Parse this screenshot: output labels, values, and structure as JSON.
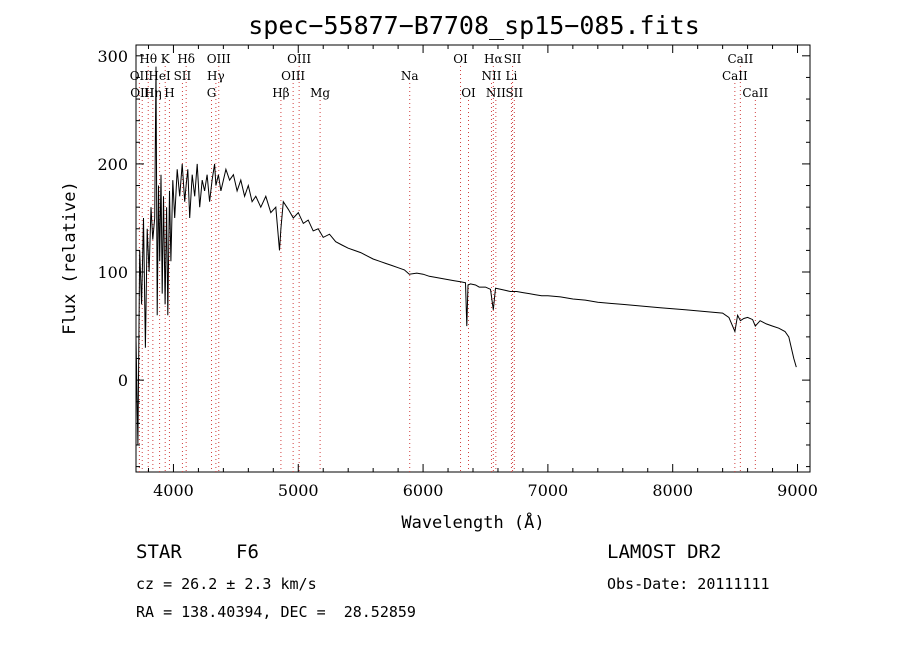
{
  "chart_data": {
    "type": "line",
    "title": "spec−55877−B7708_sp15−085.fits",
    "xlabel": "Wavelength (Å)",
    "ylabel": "Flux (relative)",
    "xlim": [
      3700,
      9100
    ],
    "ylim": [
      -85,
      310
    ],
    "x_ticks": [
      4000,
      5000,
      6000,
      7000,
      8000,
      9000
    ],
    "y_ticks": [
      0,
      100,
      200,
      300
    ],
    "grid": false,
    "series": [
      {
        "color": "#000000",
        "x": [
          3700,
          3715,
          3730,
          3745,
          3760,
          3775,
          3790,
          3805,
          3820,
          3835,
          3850,
          3860,
          3870,
          3880,
          3890,
          3900,
          3910,
          3920,
          3933,
          3945,
          3955,
          3968,
          3980,
          3995,
          4010,
          4030,
          4050,
          4070,
          4090,
          4101,
          4115,
          4130,
          4150,
          4170,
          4190,
          4210,
          4230,
          4250,
          4270,
          4290,
          4310,
          4330,
          4340,
          4360,
          4380,
          4400,
          4420,
          4450,
          4480,
          4510,
          4540,
          4570,
          4600,
          4630,
          4660,
          4700,
          4740,
          4780,
          4820,
          4850,
          4861,
          4880,
          4920,
          4960,
          5000,
          5040,
          5080,
          5120,
          5160,
          5200,
          5250,
          5300,
          5350,
          5400,
          5450,
          5500,
          5550,
          5600,
          5650,
          5700,
          5750,
          5800,
          5850,
          5890,
          5950,
          6000,
          6050,
          6100,
          6150,
          6200,
          6250,
          6300,
          6340,
          6350,
          6360,
          6380,
          6420,
          6450,
          6500,
          6540,
          6563,
          6580,
          6620,
          6660,
          6700,
          6750,
          6800,
          6850,
          6900,
          6950,
          7000,
          7100,
          7200,
          7300,
          7400,
          7500,
          7600,
          7700,
          7800,
          7900,
          8000,
          8100,
          8200,
          8300,
          8400,
          8450,
          8498,
          8520,
          8542,
          8570,
          8600,
          8640,
          8662,
          8700,
          8750,
          8800,
          8850,
          8900,
          8930,
          8950,
          8970,
          8990
        ],
        "y": [
          40,
          -60,
          120,
          70,
          150,
          30,
          140,
          100,
          160,
          130,
          150,
          290,
          60,
          180,
          110,
          190,
          80,
          170,
          70,
          160,
          60,
          175,
          110,
          185,
          150,
          195,
          170,
          200,
          165,
          180,
          195,
          150,
          190,
          170,
          200,
          160,
          185,
          175,
          190,
          165,
          185,
          200,
          180,
          190,
          175,
          185,
          195,
          185,
          190,
          175,
          185,
          170,
          180,
          165,
          170,
          160,
          170,
          155,
          160,
          120,
          140,
          165,
          158,
          150,
          155,
          145,
          148,
          138,
          140,
          132,
          135,
          128,
          125,
          122,
          120,
          118,
          115,
          112,
          110,
          108,
          106,
          104,
          102,
          98,
          99,
          98,
          96,
          95,
          94,
          93,
          92,
          91,
          90,
          50,
          88,
          89,
          88,
          86,
          86,
          84,
          65,
          85,
          84,
          83,
          82,
          82,
          81,
          80,
          79,
          78,
          78,
          77,
          75,
          74,
          72,
          71,
          70,
          69,
          68,
          67,
          66,
          65,
          64,
          63,
          62,
          58,
          45,
          60,
          55,
          57,
          58,
          56,
          50,
          55,
          52,
          50,
          48,
          45,
          40,
          30,
          20,
          12
        ]
      }
    ],
    "line_markers": [
      {
        "label": "Hθ",
        "x": 3798,
        "row": 0
      },
      {
        "label": "K",
        "x": 3934,
        "row": 0
      },
      {
        "label": "Hδ",
        "x": 4102,
        "row": 0
      },
      {
        "label": "OIII",
        "x": 4363,
        "row": 0
      },
      {
        "label": "OIII",
        "x": 5007,
        "row": 0
      },
      {
        "label": "OI",
        "x": 6300,
        "row": 0
      },
      {
        "label": "Hα",
        "x": 6563,
        "row": 0
      },
      {
        "label": "SII",
        "x": 6717,
        "row": 0
      },
      {
        "label": "CaII",
        "x": 8542,
        "row": 0
      },
      {
        "label": "OII",
        "x": 3727,
        "row": 1
      },
      {
        "label": "HeI",
        "x": 3889,
        "row": 1
      },
      {
        "label": "SII",
        "x": 4072,
        "row": 1
      },
      {
        "label": "Hγ",
        "x": 4340,
        "row": 1
      },
      {
        "label": "OIII",
        "x": 4959,
        "row": 1
      },
      {
        "label": "Na",
        "x": 5893,
        "row": 1
      },
      {
        "label": "NII",
        "x": 6548,
        "row": 1
      },
      {
        "label": "Li",
        "x": 6708,
        "row": 1
      },
      {
        "label": "CaII",
        "x": 8498,
        "row": 1
      },
      {
        "label": "OIII",
        "x": 3750,
        "row": 2
      },
      {
        "label": "Hη",
        "x": 3835,
        "row": 2
      },
      {
        "label": "H",
        "x": 3968,
        "row": 2
      },
      {
        "label": "G",
        "x": 4305,
        "row": 2
      },
      {
        "label": "Hβ",
        "x": 4861,
        "row": 2
      },
      {
        "label": "Mg",
        "x": 5175,
        "row": 2
      },
      {
        "label": "OI",
        "x": 6364,
        "row": 2
      },
      {
        "label": "NII",
        "x": 6583,
        "row": 2
      },
      {
        "label": "SII",
        "x": 6731,
        "row": 2
      },
      {
        "label": "CaII",
        "x": 8662,
        "row": 2
      }
    ]
  },
  "info": {
    "object_class": "STAR",
    "subclass": "F6",
    "survey": "LAMOST DR2",
    "cz": "cz = 26.2 ± 2.3 km/s",
    "obs_date": "Obs-Date: 20111111",
    "coords": "RA = 138.40394, DEC =  28.52859"
  }
}
